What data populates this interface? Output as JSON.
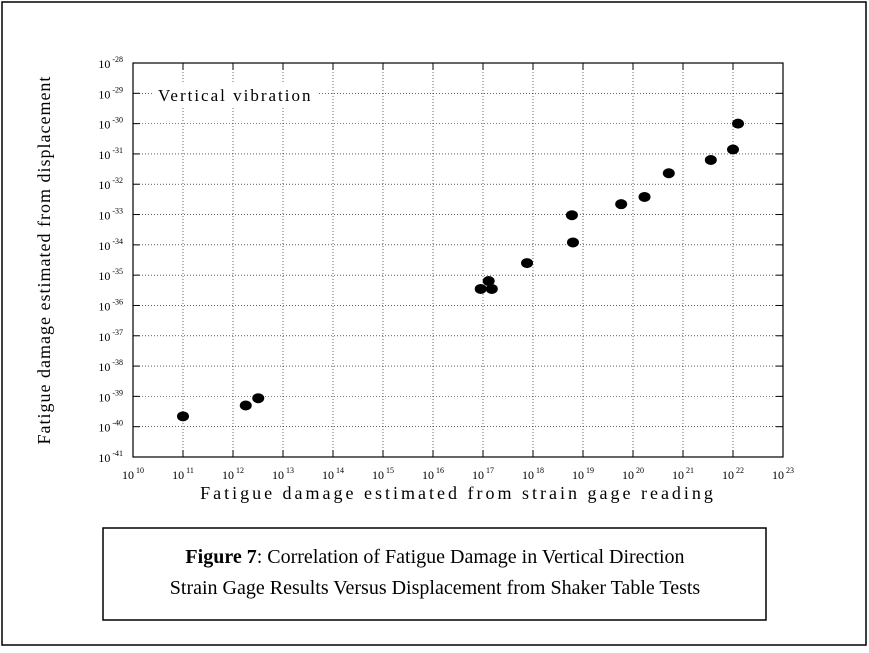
{
  "chart_data": {
    "type": "scatter",
    "x_label": "Fatigue damage estimated from strain gage reading",
    "y_label": "Fatigue damage estimated from displacement",
    "annotation": "Vertical vibration",
    "figure_label": "Figure 7",
    "caption": ": Correlation of Fatigue Damage in Vertical Direction",
    "caption_line2": "Strain Gage Results Versus Displacement from Shaker Table Tests",
    "x_scale": "log",
    "y_scale": "log",
    "grid": true,
    "color": "#000000",
    "x": [
      100000000000.0,
      1800000000000.0,
      3200000000000.0,
      9e+16,
      1.3e+17,
      1.5e+17,
      7.6e+17,
      6e+18,
      6.3e+18,
      5.8e+19,
      1.7e+20,
      5.2e+20,
      3.6e+21,
      1e+22,
      1.26e+22
    ],
    "values": [
      2.2e-40,
      5e-40,
      8.7e-40,
      3.5e-36,
      6.4e-36,
      3.5e-36,
      2.5e-35,
      9.5e-34,
      1.2e-34,
      2.2e-33,
      3.8e-33,
      2.3e-32,
      6.3e-32,
      1.4e-31,
      1e-30
    ],
    "xlim": [
      10000000000.0,
      1e+23
    ],
    "ylim": [
      1e-41,
      1e-28
    ],
    "xticks": [
      {
        "value": 10000000000.0,
        "label": "10^10"
      },
      {
        "value": 100000000000.0,
        "label": "10^11"
      },
      {
        "value": 1000000000000.0,
        "label": "10^12"
      },
      {
        "value": 10000000000000.0,
        "label": "10^13"
      },
      {
        "value": 100000000000000.0,
        "label": "10^14"
      },
      {
        "value": 1000000000000000.0,
        "label": "10^15"
      },
      {
        "value": 1e+16,
        "label": "10^16"
      },
      {
        "value": 1e+17,
        "label": "10^17"
      },
      {
        "value": 1e+18,
        "label": "10^18"
      },
      {
        "value": 1e+19,
        "label": "10^19"
      },
      {
        "value": 1e+20,
        "label": "10^20"
      },
      {
        "value": 1e+21,
        "label": "10^21"
      },
      {
        "value": 1e+22,
        "label": "10^22"
      },
      {
        "value": 1e+23,
        "label": "10^23"
      }
    ],
    "yticks": [
      {
        "value": 1e-41,
        "label": "10^-41"
      },
      {
        "value": 1e-40,
        "label": "10^-40"
      },
      {
        "value": 1e-39,
        "label": "10^-39"
      },
      {
        "value": 1e-38,
        "label": "10^-38"
      },
      {
        "value": 1e-37,
        "label": "10^-37"
      },
      {
        "value": 1e-36,
        "label": "10^-36"
      },
      {
        "value": 1e-35,
        "label": "10^-35"
      },
      {
        "value": 1e-34,
        "label": "10^-34"
      },
      {
        "value": 1e-33,
        "label": "10^-33"
      },
      {
        "value": 1e-32,
        "label": "10^-32"
      },
      {
        "value": 1e-31,
        "label": "10^-31"
      },
      {
        "value": 1e-30,
        "label": "10^-30"
      },
      {
        "value": 1e-29,
        "label": "10^-29"
      },
      {
        "value": 1e-28,
        "label": "10^-28"
      }
    ]
  }
}
